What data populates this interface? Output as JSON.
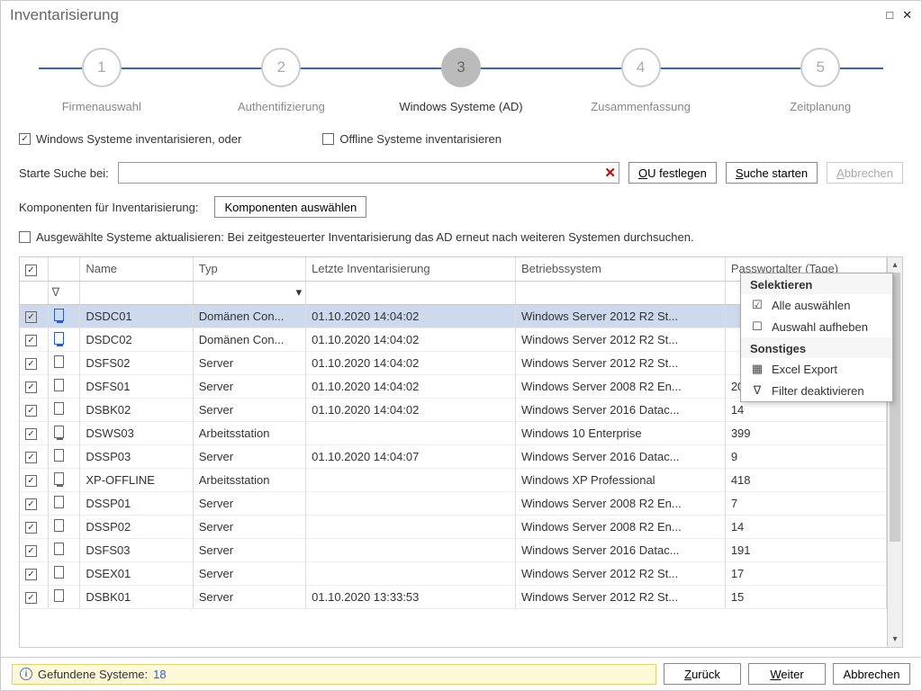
{
  "window": {
    "title": "Inventarisierung"
  },
  "progress": {
    "steps": [
      {
        "num": "1",
        "label": "Firmenauswahl",
        "active": false
      },
      {
        "num": "2",
        "label": "Authentifizierung",
        "active": false
      },
      {
        "num": "3",
        "label": "Windows Systeme (AD)",
        "active": true
      },
      {
        "num": "4",
        "label": "Zusammenfassung",
        "active": false
      },
      {
        "num": "5",
        "label": "Zeitplanung",
        "active": false
      }
    ]
  },
  "options": {
    "win_inv": "Windows Systeme inventarisieren, oder",
    "win_inv_checked": true,
    "offline_inv": "Offline Systeme inventarisieren",
    "offline_inv_checked": false
  },
  "search": {
    "label": "Starte Suche bei:",
    "value": "",
    "ou_btn": "OU festlegen",
    "start_btn": "Suche starten",
    "cancel_btn": "Abbrechen"
  },
  "components": {
    "label": "Komponenten für Inventarisierung:",
    "btn": "Komponenten auswählen"
  },
  "refresh": {
    "checked": false,
    "label": "Ausgewählte Systeme aktualisieren: Bei zeitgesteuerter Inventarisierung das AD erneut nach weiteren Systemen durchsuchen."
  },
  "table": {
    "headers": {
      "name": "Name",
      "type": "Typ",
      "date": "Letzte Inventarisierung",
      "os": "Betriebssystem",
      "age": "Passwortalter (Tage)"
    },
    "rows": [
      {
        "sel": true,
        "ri": "dc",
        "name": "DSDC01",
        "type": "Domänen Con...",
        "date": "01.10.2020 14:04:02",
        "os": "Windows Server 2012 R2 St...",
        "age": "",
        "hl": true
      },
      {
        "sel": true,
        "ri": "dc",
        "name": "DSDC02",
        "type": "Domänen Con...",
        "date": "01.10.2020 14:04:02",
        "os": "Windows Server 2012 R2 St...",
        "age": ""
      },
      {
        "sel": true,
        "ri": "server",
        "name": "DSFS02",
        "type": "Server",
        "date": "01.10.2020 14:04:02",
        "os": "Windows Server 2012 R2 St...",
        "age": ""
      },
      {
        "sel": true,
        "ri": "server",
        "name": "DSFS01",
        "type": "Server",
        "date": "01.10.2020 14:04:02",
        "os": "Windows Server 2008 R2 En...",
        "age": "20"
      },
      {
        "sel": true,
        "ri": "server",
        "name": "DSBK02",
        "type": "Server",
        "date": "01.10.2020 14:04:02",
        "os": "Windows Server 2016 Datac...",
        "age": "14"
      },
      {
        "sel": true,
        "ri": "ws",
        "name": "DSWS03",
        "type": "Arbeitsstation",
        "date": "",
        "os": "Windows 10 Enterprise",
        "age": "399"
      },
      {
        "sel": true,
        "ri": "server",
        "name": "DSSP03",
        "type": "Server",
        "date": "01.10.2020 14:04:07",
        "os": "Windows Server 2016 Datac...",
        "age": "9"
      },
      {
        "sel": true,
        "ri": "ws",
        "name": "XP-OFFLINE",
        "type": "Arbeitsstation",
        "date": "",
        "os": "Windows XP Professional",
        "age": "418"
      },
      {
        "sel": true,
        "ri": "server",
        "name": "DSSP01",
        "type": "Server",
        "date": "",
        "os": "Windows Server 2008 R2 En...",
        "age": "7"
      },
      {
        "sel": true,
        "ri": "server",
        "name": "DSSP02",
        "type": "Server",
        "date": "",
        "os": "Windows Server 2008 R2 En...",
        "age": "14"
      },
      {
        "sel": true,
        "ri": "server",
        "name": "DSFS03",
        "type": "Server",
        "date": "",
        "os": "Windows Server 2016 Datac...",
        "age": "191"
      },
      {
        "sel": true,
        "ri": "server",
        "name": "DSEX01",
        "type": "Server",
        "date": "",
        "os": "Windows Server 2012 R2 St...",
        "age": "17"
      },
      {
        "sel": true,
        "ri": "server",
        "name": "DSBK01",
        "type": "Server",
        "date": "01.10.2020 13:33:53",
        "os": "Windows Server 2012 R2 St...",
        "age": "15"
      }
    ]
  },
  "context_menu": {
    "section1": "Selektieren",
    "select_all": "Alle auswählen",
    "deselect_all": "Auswahl aufheben",
    "section2": "Sonstiges",
    "excel": "Excel Export",
    "filter_off": "Filter deaktivieren"
  },
  "status": {
    "found_label": "Gefundene Systeme:",
    "found_count": "18",
    "back": "Zurück",
    "next": "Weiter",
    "cancel": "Abbrechen"
  }
}
